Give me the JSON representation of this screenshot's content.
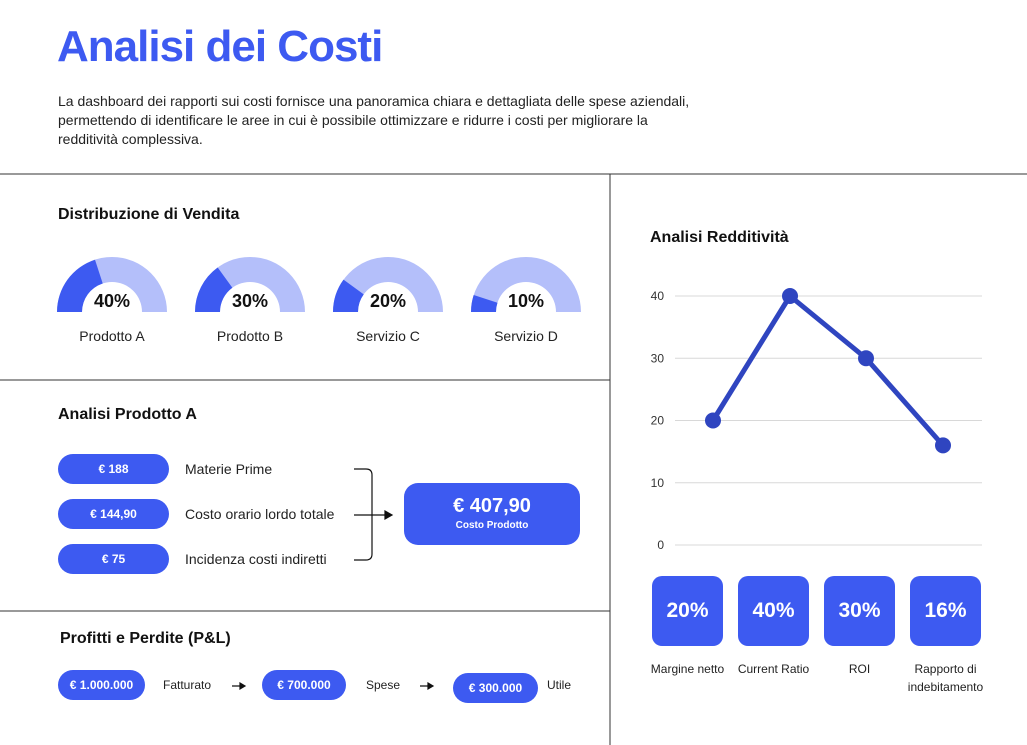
{
  "header": {
    "title": "Analisi dei Costi",
    "description": "La dashboard dei rapporti sui costi fornisce una panoramica chiara e dettagliata delle spese aziendali, permettendo di identificare le aree in cui è possibile ottimizzare e ridurre i costi per migliorare la redditività complessiva."
  },
  "chart_data": [
    {
      "type": "gauge",
      "title": "Distribuzione di Vendita",
      "categories": [
        "Prodotto A",
        "Prodotto B",
        "Servizio C",
        "Servizio D"
      ],
      "values": [
        40,
        30,
        20,
        10
      ],
      "value_labels": [
        "40%",
        "30%",
        "20%",
        "10%"
      ],
      "ylim": [
        0,
        100
      ],
      "color": "#3d5af1",
      "track_color": "#b4bffa"
    },
    {
      "type": "line",
      "title": "Analisi Redditività",
      "categories": [
        "Margine netto",
        "Current Ratio",
        "ROI",
        "Rapporto di indebitamento"
      ],
      "values": [
        20,
        40,
        30,
        16
      ],
      "value_labels": [
        "20%",
        "40%",
        "30%",
        "16%"
      ],
      "ylim": [
        0,
        40
      ],
      "yticks": [
        0,
        10,
        20,
        30,
        40
      ],
      "grid": true,
      "color": "#2f45c0",
      "card_color": "#3d5af1"
    }
  ],
  "product_analysis": {
    "title": "Analisi Prodotto A",
    "items": [
      {
        "amount": "€ 188",
        "label": "Materie Prime"
      },
      {
        "amount": "€ 144,90",
        "label": "Costo orario lordo totale"
      },
      {
        "amount": "€ 75",
        "label": "Incidenza costi indiretti"
      }
    ],
    "total": {
      "amount": "€ 407,90",
      "label": "Costo Prodotto"
    }
  },
  "pnl": {
    "title": "Profitti e Perdite (P&L)",
    "steps": [
      {
        "amount": "€ 1.000.000",
        "label": "Fatturato"
      },
      {
        "amount": "€ 700.000",
        "label": "Spese"
      },
      {
        "amount": "€ 300.000",
        "label": "Utile"
      }
    ]
  }
}
